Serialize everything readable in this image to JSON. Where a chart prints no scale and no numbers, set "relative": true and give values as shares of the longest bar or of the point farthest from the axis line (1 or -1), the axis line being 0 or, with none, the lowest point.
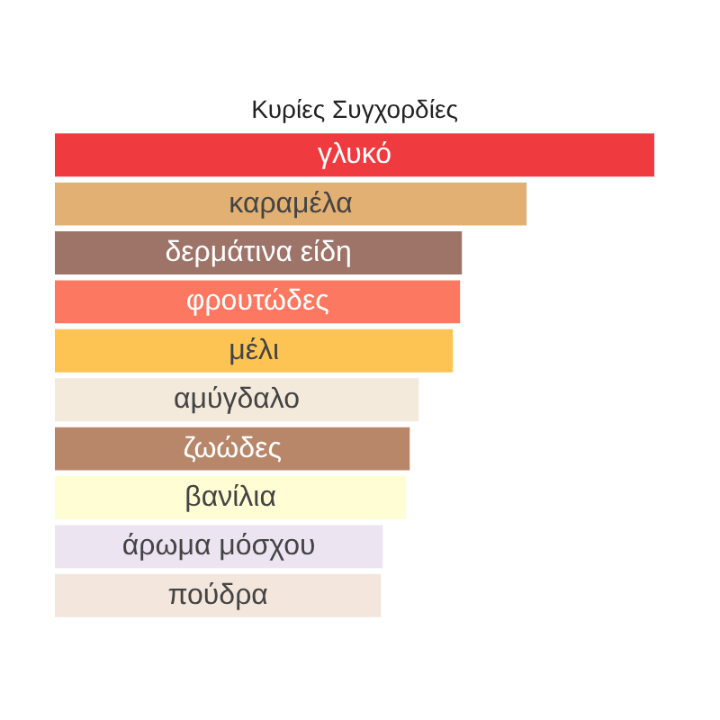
{
  "chart_data": {
    "type": "bar",
    "orientation": "horizontal",
    "relative": true,
    "title": "Κυρίες Συγχορδίες",
    "categories": [
      "γλυκό",
      "καραμέλα",
      "δερμάτινα είδη",
      "φρουτώδες",
      "μέλι",
      "αμύγδαλο",
      "ζωώδες",
      "βανίλια",
      "άρωμα μόσχου",
      "πούδρα"
    ],
    "values": [
      1,
      0.787,
      0.679,
      0.676,
      0.664,
      0.607,
      0.592,
      0.586,
      0.547,
      0.544
    ],
    "colors": [
      "#ef3a3f",
      "#e2b072",
      "#9e7469",
      "#fd7860",
      "#fdc454",
      "#f3eadb",
      "#b8876a",
      "#fffdd4",
      "#ece4f1",
      "#f3e6dc"
    ]
  }
}
